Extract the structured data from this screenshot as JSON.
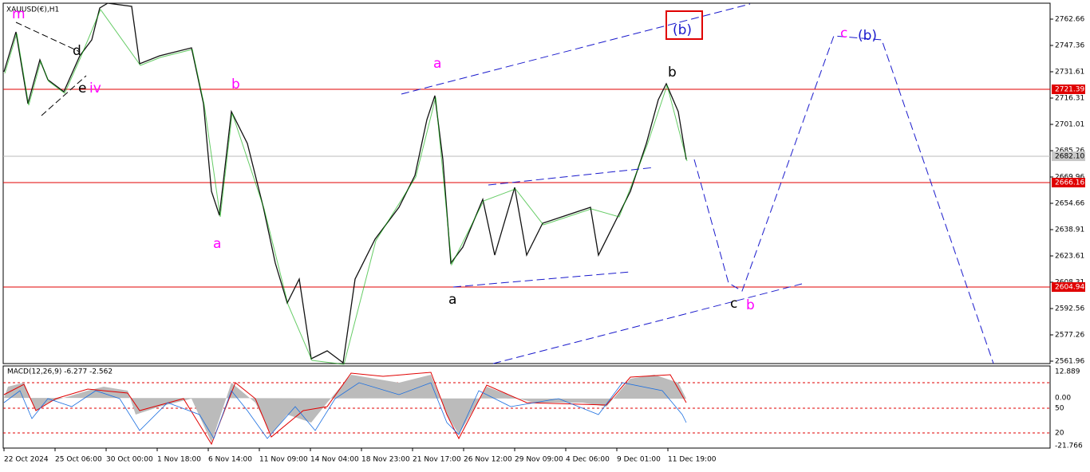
{
  "header": {
    "symbol": "XAUUSD(€),H1"
  },
  "price_axis": [
    "2762.66",
    "2747.36",
    "2731.61",
    "2716.31",
    "2701.01",
    "2685.26",
    "2669.96",
    "2654.66",
    "2638.91",
    "2623.61",
    "2608.31",
    "2592.56",
    "2577.26",
    "2561.96"
  ],
  "price_markers": [
    {
      "label": "2721.39",
      "kind": "red"
    },
    {
      "label": "2682.10",
      "kind": "gray"
    },
    {
      "label": "2666.16",
      "kind": "red"
    },
    {
      "label": "2604.94",
      "kind": "red"
    }
  ],
  "time_axis": [
    "22 Oct 2024",
    "25 Oct 06:00",
    "30 Oct 00:00",
    "1 Nov 18:00",
    "6 Nov 14:00",
    "11 Nov 09:00",
    "14 Nov 04:00",
    "18 Nov 23:00",
    "21 Nov 17:00",
    "26 Nov 12:00",
    "29 Nov 09:00",
    "4 Dec 06:00",
    "9 Dec 01:00",
    "11 Dec 19:00"
  ],
  "indicator": {
    "label": "MACD(12,26,9) -6.277 -2.562",
    "axis": [
      "12.889",
      "0.00",
      "50",
      "20",
      "-21.766"
    ]
  },
  "wave_labels": [
    {
      "text": "m",
      "color": "magenta"
    },
    {
      "text": "d",
      "color": "black"
    },
    {
      "text": "e",
      "color": "black"
    },
    {
      "text": "iv",
      "color": "magenta"
    },
    {
      "text": "b",
      "color": "magenta"
    },
    {
      "text": "a",
      "color": "magenta"
    },
    {
      "text": "a",
      "color": "magenta"
    },
    {
      "text": "a",
      "color": "black"
    },
    {
      "text": "b",
      "color": "black"
    },
    {
      "text": "(b)",
      "color": "blue"
    },
    {
      "text": "c",
      "color": "magenta"
    },
    {
      "text": "(b)",
      "color": "blue"
    },
    {
      "text": "c",
      "color": "black"
    },
    {
      "text": "b",
      "color": "magenta"
    }
  ]
}
